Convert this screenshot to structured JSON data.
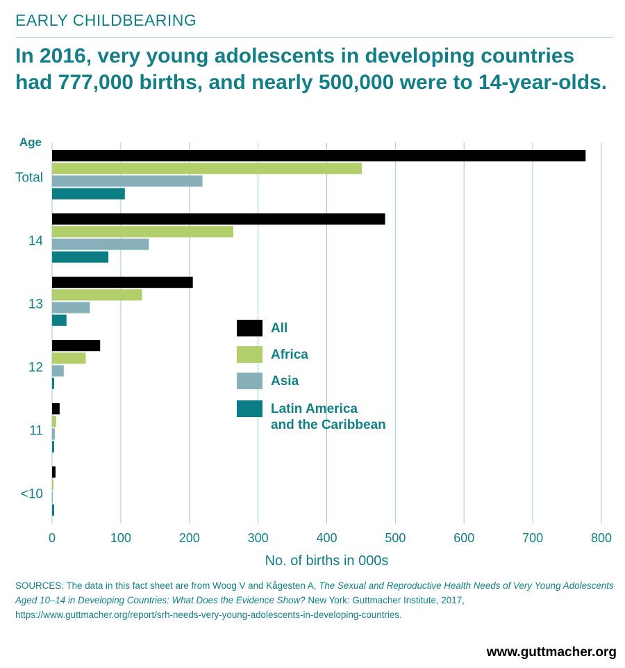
{
  "section_label": "EARLY CHILDBEARING",
  "headline": "In 2016, very young adolescents in developing countries had 777,000 births, and nearly 500,000 were to 14-year-olds.",
  "chart_data": {
    "type": "bar",
    "orientation": "horizontal",
    "ylabel": "Age",
    "xlabel": "No. of births in 000s",
    "categories": [
      "Total",
      "14",
      "13",
      "12",
      "11",
      "<10"
    ],
    "xlim": [
      0,
      800
    ],
    "xticks": [
      0,
      100,
      200,
      300,
      400,
      500,
      600,
      700,
      800
    ],
    "grid": true,
    "legend_position": "center-right",
    "series": [
      {
        "name": "All",
        "color": "#000000",
        "values": [
          777,
          485,
          205,
          70,
          11,
          5
        ]
      },
      {
        "name": "Africa",
        "color": "#b3cf6b",
        "values": [
          451,
          264,
          131,
          49,
          6,
          2
        ]
      },
      {
        "name": "Asia",
        "color": "#88b0bb",
        "values": [
          219,
          141,
          55,
          17,
          4,
          1
        ]
      },
      {
        "name": "Latin America and the Caribbean",
        "color": "#0b7d85",
        "values": [
          106,
          82,
          21,
          3,
          3,
          3
        ]
      }
    ]
  },
  "legend_lines": {
    "all": [
      "All"
    ],
    "africa": [
      "Africa"
    ],
    "asia": [
      "Asia"
    ],
    "latam": [
      "Latin America",
      "and the Caribbean"
    ]
  },
  "sources": {
    "prefix": "SOURCES: The data in this fact sheet are from Woog V and Kågesten A, ",
    "title": "The Sexual and Reproductive Health Needs of Very Young Adolescents Aged 10–14 in Developing Countries: What Does the Evidence Show?",
    "suffix": " New York: Guttmacher Institute, 2017, https://www.guttmacher.org/report/srh-needs-very-young-adolescents-in-developing-countries."
  },
  "brand_url": "www.guttmacher.org",
  "colors": {
    "accent": "#137e86",
    "grid": "#9fc7cb"
  }
}
